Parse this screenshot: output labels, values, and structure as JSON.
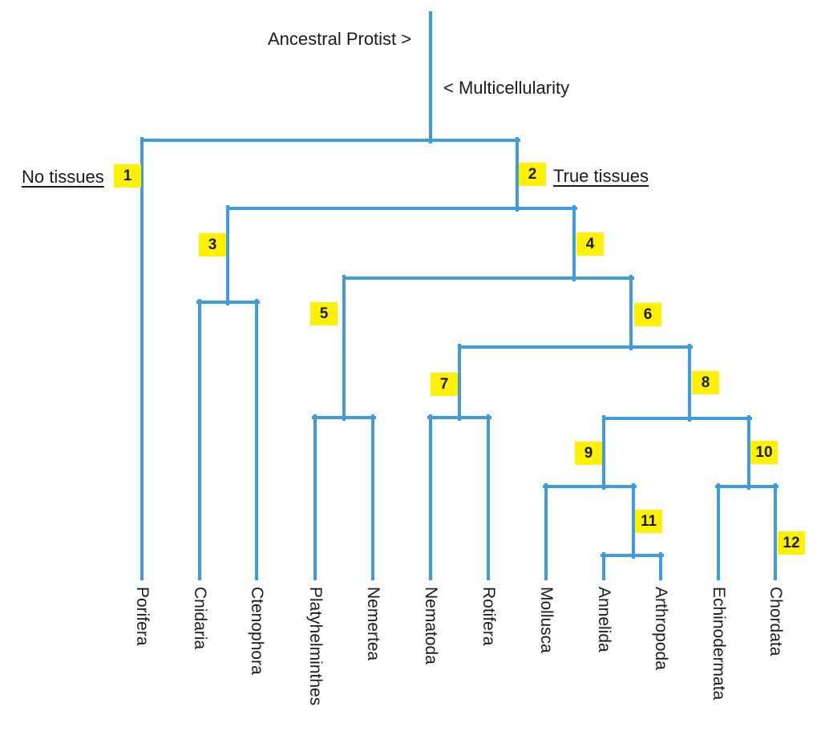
{
  "diagram": {
    "type": "phylogenetic-tree",
    "root_label": "Ancestral Protist >",
    "stem_label": "< Multicellularity",
    "left_branch_label": "No tissues",
    "right_branch_label": "True tissues",
    "badges": [
      "1",
      "2",
      "3",
      "4",
      "5",
      "6",
      "7",
      "8",
      "9",
      "10",
      "11",
      "12"
    ],
    "taxa": [
      "Porifera",
      "Cnidaria",
      "Ctenophora",
      "Platyhelminthes",
      "Nemertea",
      "Nematoda",
      "Rotifera",
      "Mollusca",
      "Annelida",
      "Arthropoda",
      "Echinodermata",
      "Chordata"
    ],
    "topology": "(Porifera,((Cnidaria,Ctenophora),((Platyhelminthes,Nemertea),((Nematoda,Rotifera),((Mollusca,(Annelida,Arthropoda)),(Echinodermata,Chordata))))))",
    "colors": {
      "branch": "#3E9BDE",
      "badge_bg": "#FFF100",
      "text": "#1b1b1b"
    }
  }
}
